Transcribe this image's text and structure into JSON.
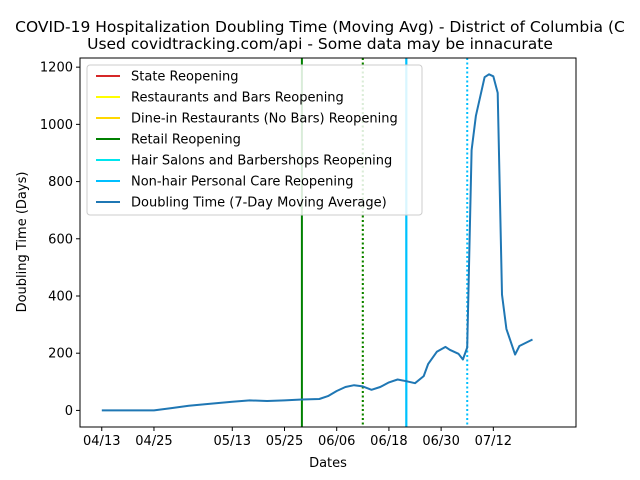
{
  "chart_data": {
    "type": "line",
    "title": "COVID-19 Hospitalization Doubling Time (Moving Avg) - District of Columbia (C",
    "subtitle": "Used covidtracking.com/api - Some data may be innacurate",
    "xlabel": "Dates",
    "ylabel": "Doubling Time (Days)",
    "xlim": [
      "2020-04-08",
      "2020-07-31"
    ],
    "ylim": [
      -58,
      1232
    ],
    "x_ticks": [
      "2020-04-13",
      "2020-04-25",
      "2020-05-13",
      "2020-05-25",
      "2020-06-06",
      "2020-06-18",
      "2020-06-30",
      "2020-07-12"
    ],
    "x_tick_labels": [
      "04/13",
      "04/25",
      "05/13",
      "05/25",
      "06/06",
      "06/18",
      "06/30",
      "07/12"
    ],
    "y_ticks": [
      0,
      200,
      400,
      600,
      800,
      1000,
      1200
    ],
    "y_tick_labels": [
      "0",
      "200",
      "400",
      "600",
      "800",
      "1000",
      "1200"
    ],
    "grid": false,
    "legend_position": "top-left",
    "events": [
      {
        "name": "State Reopening",
        "color": "#d62728",
        "style": "solid",
        "date": null
      },
      {
        "name": "Restaurants and Bars Reopening",
        "color": "#ffff00",
        "style": "solid",
        "date": null
      },
      {
        "name": "Dine-in Restaurants (No Bars) Reopening",
        "color": "#ffd700",
        "style": "dotted",
        "date": "2020-06-12"
      },
      {
        "name": "Retail Reopening",
        "color": "#008000",
        "style": "solid",
        "date": "2020-05-29"
      },
      {
        "name": "Retail Reopening",
        "color": "#008000",
        "style": "dotted",
        "date": "2020-06-12"
      },
      {
        "name": "Hair Salons and Barbershops Reopening",
        "color": "#00e5ee",
        "style": "solid",
        "date": "2020-06-22"
      },
      {
        "name": "Non-hair Personal Care Reopening",
        "color": "#00bfff",
        "style": "solid",
        "date": "2020-06-22"
      },
      {
        "name": "Non-hair Personal Care Reopening",
        "color": "#00bfff",
        "style": "dotted",
        "date": "2020-07-06"
      }
    ],
    "legend_entries": [
      {
        "label": "State Reopening",
        "color": "#d62728"
      },
      {
        "label": "Restaurants and Bars Reopening",
        "color": "#ffff00"
      },
      {
        "label": "Dine-in Restaurants (No Bars) Reopening",
        "color": "#ffd700"
      },
      {
        "label": "Retail Reopening",
        "color": "#008000"
      },
      {
        "label": "Hair Salons and Barbershops Reopening",
        "color": "#00e5ee"
      },
      {
        "label": "Non-hair Personal Care Reopening",
        "color": "#00bfff"
      },
      {
        "label": "Doubling Time (7-Day Moving Average)",
        "color": "#1f77b4"
      }
    ],
    "series": [
      {
        "name": "Doubling Time (7-Day Moving Average)",
        "color": "#1f77b4",
        "x": [
          "2020-04-13",
          "2020-04-19",
          "2020-04-25",
          "2020-04-29",
          "2020-05-03",
          "2020-05-07",
          "2020-05-13",
          "2020-05-17",
          "2020-05-21",
          "2020-05-25",
          "2020-05-29",
          "2020-06-02",
          "2020-06-04",
          "2020-06-06",
          "2020-06-08",
          "2020-06-10",
          "2020-06-12",
          "2020-06-14",
          "2020-06-16",
          "2020-06-18",
          "2020-06-20",
          "2020-06-22",
          "2020-06-24",
          "2020-06-26",
          "2020-06-27",
          "2020-06-29",
          "2020-07-01",
          "2020-07-02",
          "2020-07-04",
          "2020-07-05",
          "2020-07-06",
          "2020-07-07",
          "2020-07-08",
          "2020-07-10",
          "2020-07-11",
          "2020-07-12",
          "2020-07-13",
          "2020-07-14",
          "2020-07-15",
          "2020-07-17",
          "2020-07-18",
          "2020-07-21"
        ],
        "y": [
          0,
          0,
          0,
          8,
          16,
          22,
          30,
          35,
          33,
          35,
          38,
          40,
          50,
          68,
          82,
          88,
          84,
          72,
          82,
          98,
          108,
          102,
          95,
          120,
          162,
          205,
          222,
          212,
          198,
          178,
          220,
          910,
          1030,
          1165,
          1175,
          1168,
          1110,
          405,
          285,
          195,
          225,
          248
        ]
      }
    ]
  }
}
